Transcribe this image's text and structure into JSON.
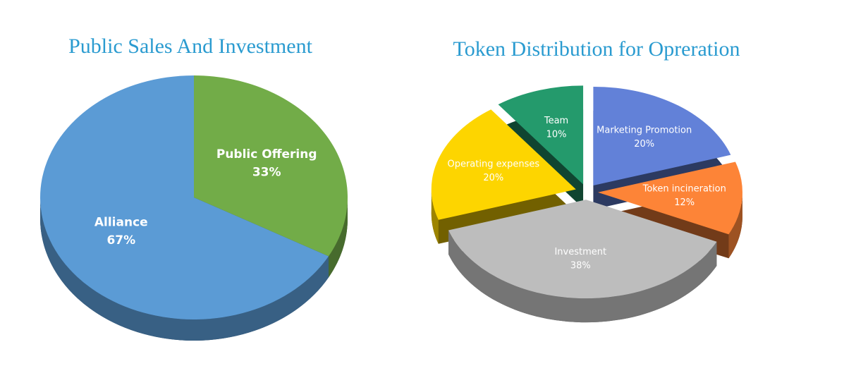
{
  "chart_data": [
    {
      "type": "pie",
      "title": "Public Sales And Investment",
      "categories": [
        "Public Offering",
        "Alliance"
      ],
      "values": [
        33,
        67
      ],
      "value_labels": [
        "33%",
        "67%"
      ],
      "colors": [
        "#72ac48",
        "#5b9bd5"
      ]
    },
    {
      "type": "pie",
      "title": "Token Distribution for Opreration",
      "categories": [
        "Marketing Promotion",
        "Token incineration",
        "Investment",
        "Operating expenses",
        "Team"
      ],
      "values": [
        20,
        12,
        38,
        20,
        10
      ],
      "value_labels": [
        "20%",
        "12%",
        "38%",
        "20%",
        "10%"
      ],
      "colors": [
        "#6281d8",
        "#fd8437",
        "#bdbdbd",
        "#fdd500",
        "#249a6c"
      ]
    }
  ]
}
